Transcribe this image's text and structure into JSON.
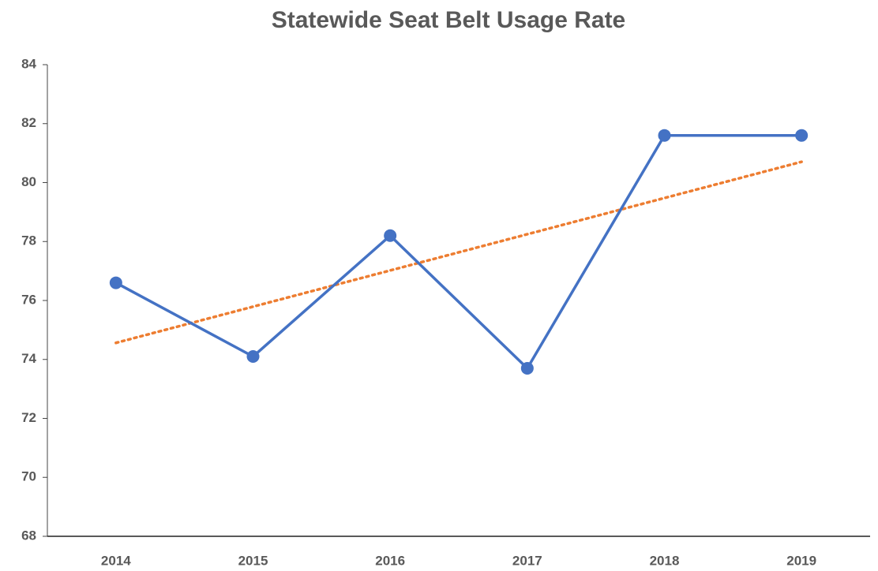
{
  "chart_data": {
    "type": "line",
    "title": "Statewide Seat Belt Usage Rate",
    "categories": [
      "2014",
      "2015",
      "2016",
      "2017",
      "2018",
      "2019"
    ],
    "series": [
      {
        "color": "#4472c4",
        "values": [
          76.6,
          74.1,
          78.2,
          73.7,
          81.6,
          81.6
        ]
      }
    ],
    "trendline": {
      "type": "linear",
      "color": "#ed7d31",
      "style": "dotted"
    },
    "ylim": [
      68,
      84
    ],
    "yticks": [
      68,
      70,
      72,
      74,
      76,
      78,
      80,
      82,
      84
    ],
    "grid": false
  }
}
